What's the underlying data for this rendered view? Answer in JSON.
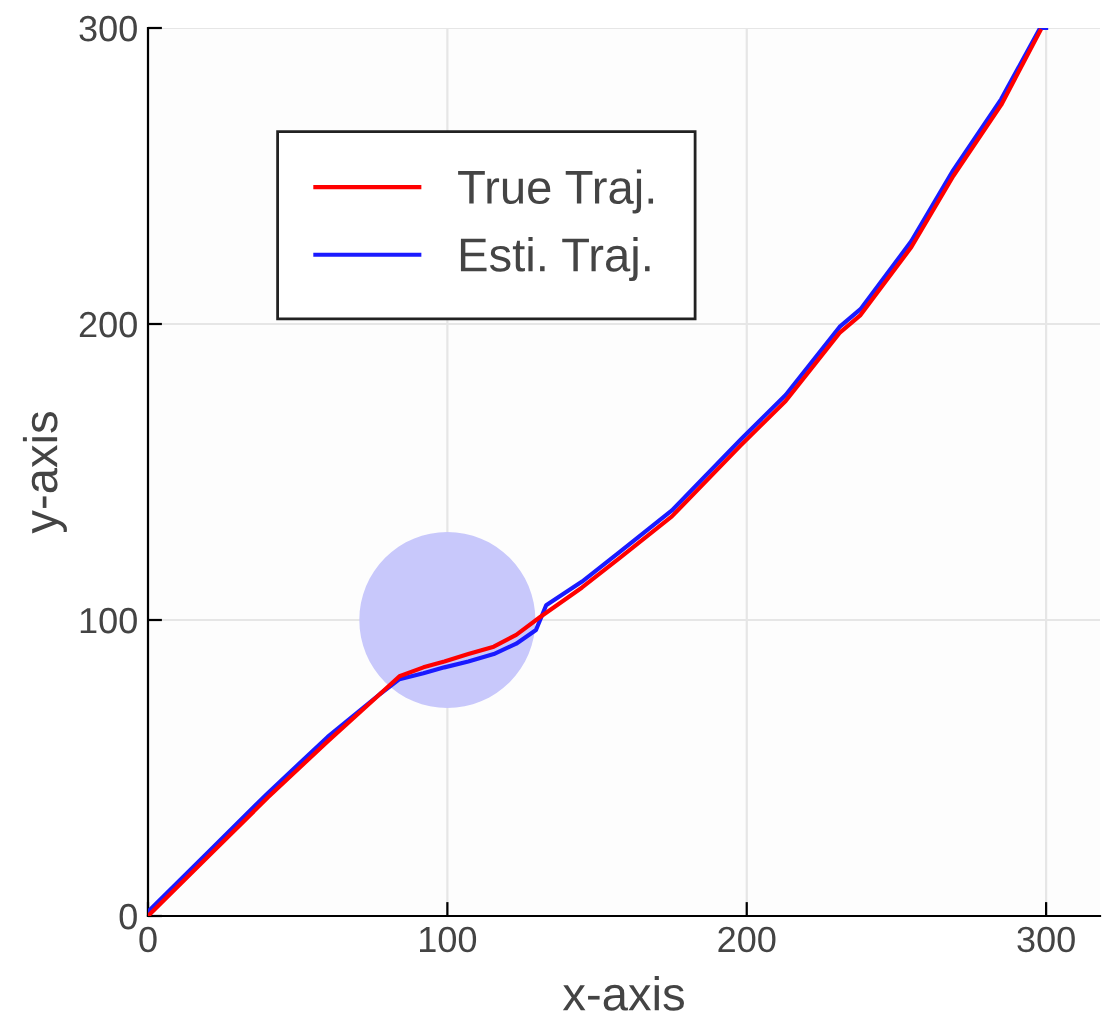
{
  "chart_data": {
    "type": "line",
    "xlabel": "x-axis",
    "ylabel": "y-axis",
    "xlim": [
      0,
      318
    ],
    "ylim": [
      0,
      300
    ],
    "xticks": [
      0,
      100,
      200,
      300
    ],
    "yticks": [
      0,
      100,
      200,
      300
    ],
    "grid": true,
    "legend": "top left",
    "line_style": "solid",
    "series": [
      {
        "type": "bubble",
        "color": "#c8c8fb",
        "x": [
          100
        ],
        "values": [
          100
        ],
        "sizes": [
          1
        ]
      },
      {
        "name": "True Traj.",
        "color": "#ff0000",
        "x": [
          0,
          20,
          40,
          60,
          77.5,
          84,
          92,
          99,
          107,
          115.5,
          123,
          131,
          145,
          157.6,
          175,
          198,
          213,
          231,
          238,
          255,
          269,
          285,
          298
        ],
        "values": [
          0,
          20,
          40,
          59,
          75,
          81,
          84,
          86,
          88.5,
          91,
          95,
          101,
          111,
          121,
          135,
          159,
          174,
          197,
          203,
          226,
          250,
          274,
          299
        ]
      },
      {
        "name": "Esti. Traj.",
        "color": "#1a1aff",
        "x": [
          0,
          20,
          40,
          60,
          77.5,
          84,
          92,
          99,
          107,
          115.5,
          123,
          129.6,
          133,
          145,
          157.6,
          175,
          198,
          213,
          231,
          238,
          255,
          269,
          285,
          298,
          300
        ],
        "values": [
          1.5,
          21.5,
          41.5,
          60.5,
          75,
          80,
          82,
          84,
          86,
          88.5,
          92,
          96.6,
          105,
          113,
          123,
          137,
          161,
          176,
          199,
          205,
          228,
          252,
          276,
          300,
          300
        ]
      }
    ]
  }
}
